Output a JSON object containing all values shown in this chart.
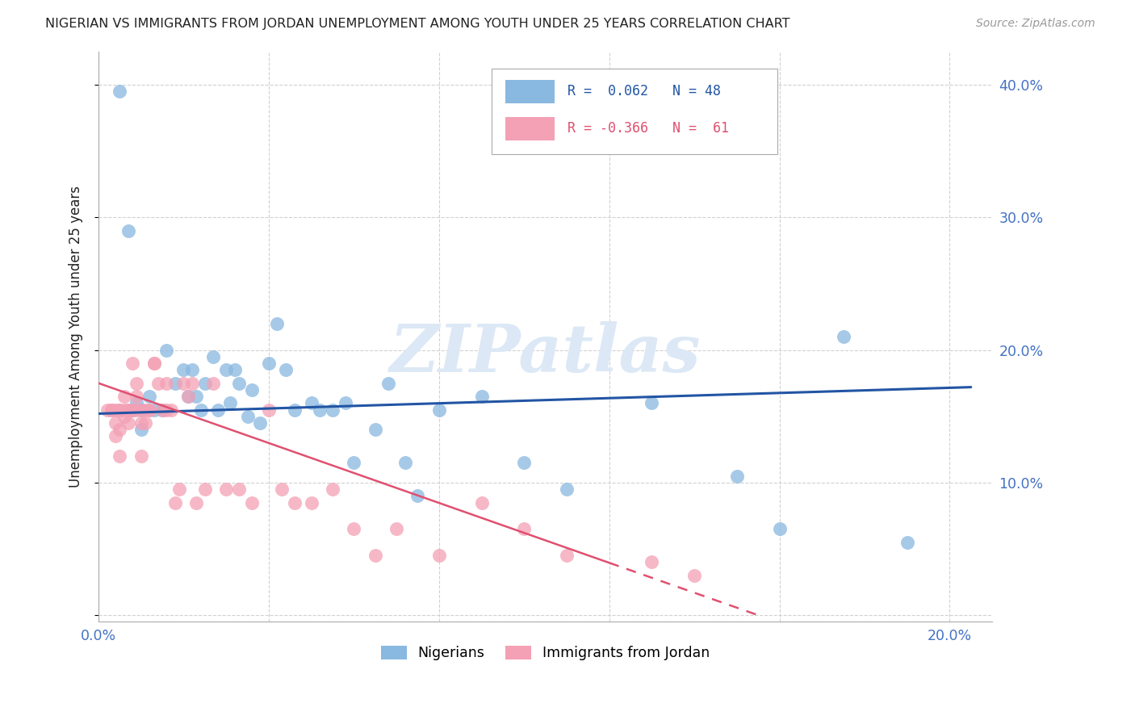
{
  "title": "NIGERIAN VS IMMIGRANTS FROM JORDAN UNEMPLOYMENT AMONG YOUTH UNDER 25 YEARS CORRELATION CHART",
  "source": "Source: ZipAtlas.com",
  "ylabel": "Unemployment Among Youth under 25 years",
  "xlim": [
    0.0,
    0.21
  ],
  "ylim": [
    -0.005,
    0.425
  ],
  "nigerian_color": "#89b8e0",
  "jordan_color": "#f4a0b5",
  "nigerian_line_color": "#2255a4",
  "jordan_line_color": "#e05070",
  "watermark": "ZIPatlas",
  "legend_r_nigerian": "R =  0.062   N = 48",
  "legend_r_jordan": "R = -0.366   N =  61",
  "nigerian_scatter_x": [
    0.005,
    0.007,
    0.008,
    0.009,
    0.01,
    0.01,
    0.012,
    0.013,
    0.015,
    0.016,
    0.018,
    0.02,
    0.021,
    0.022,
    0.023,
    0.024,
    0.025,
    0.027,
    0.028,
    0.03,
    0.031,
    0.032,
    0.033,
    0.035,
    0.036,
    0.038,
    0.04,
    0.042,
    0.044,
    0.046,
    0.05,
    0.052,
    0.055,
    0.058,
    0.06,
    0.065,
    0.068,
    0.072,
    0.075,
    0.08,
    0.09,
    0.1,
    0.11,
    0.13,
    0.15,
    0.16,
    0.175,
    0.19
  ],
  "nigerian_scatter_y": [
    0.395,
    0.29,
    0.155,
    0.16,
    0.14,
    0.155,
    0.165,
    0.155,
    0.155,
    0.2,
    0.175,
    0.185,
    0.165,
    0.185,
    0.165,
    0.155,
    0.175,
    0.195,
    0.155,
    0.185,
    0.16,
    0.185,
    0.175,
    0.15,
    0.17,
    0.145,
    0.19,
    0.22,
    0.185,
    0.155,
    0.16,
    0.155,
    0.155,
    0.16,
    0.115,
    0.14,
    0.175,
    0.115,
    0.09,
    0.155,
    0.165,
    0.115,
    0.095,
    0.16,
    0.105,
    0.065,
    0.21,
    0.055
  ],
  "jordan_scatter_x": [
    0.002,
    0.003,
    0.003,
    0.004,
    0.004,
    0.004,
    0.005,
    0.005,
    0.005,
    0.005,
    0.006,
    0.006,
    0.006,
    0.007,
    0.007,
    0.007,
    0.008,
    0.008,
    0.008,
    0.009,
    0.009,
    0.009,
    0.01,
    0.01,
    0.01,
    0.011,
    0.011,
    0.012,
    0.012,
    0.013,
    0.013,
    0.014,
    0.015,
    0.016,
    0.016,
    0.017,
    0.018,
    0.019,
    0.02,
    0.021,
    0.022,
    0.023,
    0.025,
    0.027,
    0.03,
    0.033,
    0.036,
    0.04,
    0.043,
    0.046,
    0.05,
    0.055,
    0.06,
    0.065,
    0.07,
    0.08,
    0.09,
    0.1,
    0.11,
    0.13,
    0.14
  ],
  "jordan_scatter_y": [
    0.155,
    0.155,
    0.155,
    0.155,
    0.145,
    0.135,
    0.155,
    0.155,
    0.14,
    0.12,
    0.155,
    0.15,
    0.165,
    0.155,
    0.155,
    0.145,
    0.155,
    0.155,
    0.19,
    0.155,
    0.165,
    0.175,
    0.155,
    0.145,
    0.12,
    0.155,
    0.145,
    0.155,
    0.155,
    0.19,
    0.19,
    0.175,
    0.155,
    0.155,
    0.175,
    0.155,
    0.085,
    0.095,
    0.175,
    0.165,
    0.175,
    0.085,
    0.095,
    0.175,
    0.095,
    0.095,
    0.085,
    0.155,
    0.095,
    0.085,
    0.085,
    0.095,
    0.065,
    0.045,
    0.065,
    0.045,
    0.085,
    0.065,
    0.045,
    0.04,
    0.03
  ],
  "nigerian_trend_x": [
    0.0,
    0.205
  ],
  "nigerian_trend_y": [
    0.152,
    0.172
  ],
  "jordan_trend_x": [
    0.0,
    0.155
  ],
  "jordan_trend_y": [
    0.175,
    0.0
  ],
  "background_color": "#ffffff",
  "grid_color": "#cccccc",
  "title_color": "#222222",
  "axis_label_color": "#4472c4",
  "watermark_color": "#dce8f5"
}
